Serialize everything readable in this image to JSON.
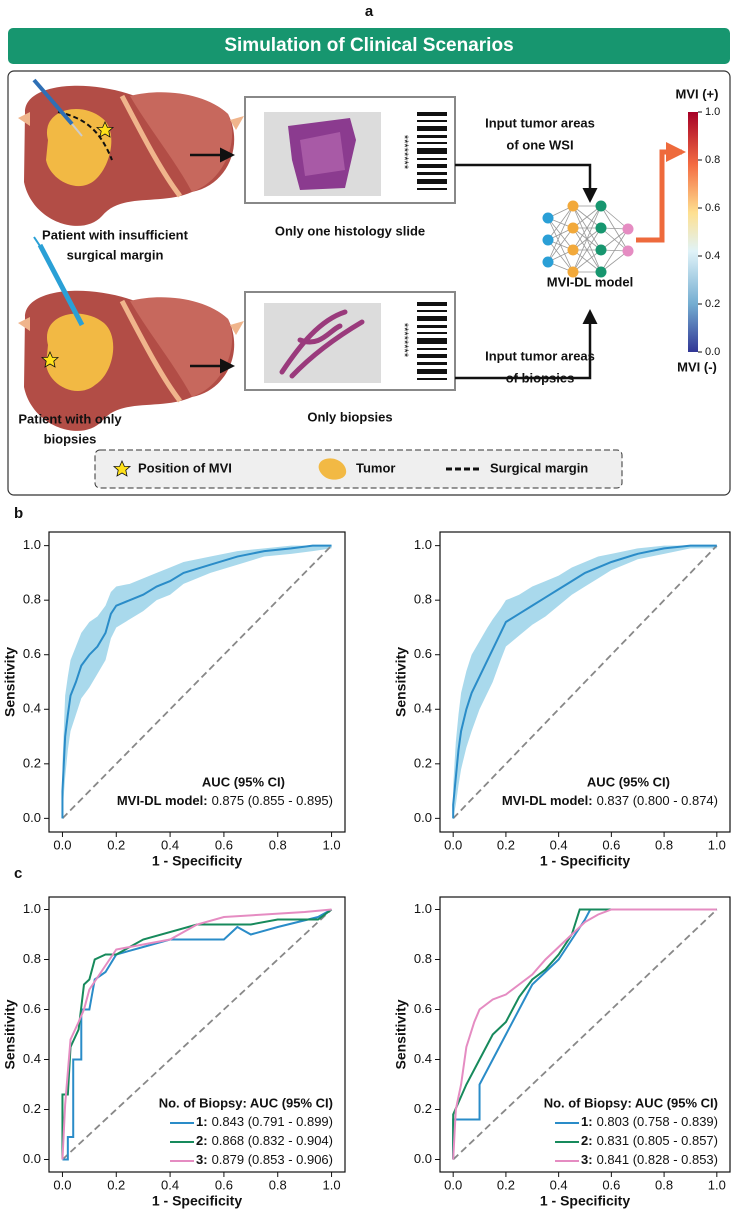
{
  "panel_a": {
    "label": "a",
    "banner": "Simulation of Clinical Scenarios",
    "scenario_1": {
      "patient": [
        "Patient with insufficient",
        "surgical margin"
      ],
      "specimen": "Only one histology slide",
      "input": [
        "Input tumor areas",
        "of one WSI"
      ]
    },
    "scenario_2": {
      "patient": [
        "Patient with only",
        "biopsies"
      ],
      "specimen": "Only biopsies",
      "input": [
        "Input tumor areas",
        "of biopsies"
      ]
    },
    "slide_code": "********",
    "model": "MVI-DL model",
    "colorbar": {
      "top_label": "MVI (+)",
      "bottom_label": "MVI (-)",
      "lim": [
        0,
        1
      ],
      "ticks": [
        {
          "value": 0,
          "label": "0.0"
        },
        0.2,
        0.4,
        0.6,
        0.8,
        {
          "value": 1,
          "label": "1.0"
        }
      ]
    },
    "legend": [
      "Position of MVI",
      "Tumor",
      "Surgical margin"
    ]
  },
  "panel_b": {
    "label": "b"
  },
  "panel_c": {
    "label": "c"
  },
  "chart_data": [
    {
      "type": "line",
      "xlabel": "1 - Specificity",
      "ylabel": "Sensitivity",
      "diagonal": true,
      "xlim": [
        -0.05,
        1.05
      ],
      "ylim": [
        -0.05,
        1.05
      ],
      "xticks": [
        {
          "value": 0,
          "label": "0.0"
        },
        0.2,
        0.4,
        0.6,
        0.8,
        {
          "value": 1,
          "label": "1.0"
        }
      ],
      "yticks": [
        {
          "value": 0,
          "label": "0.0"
        },
        0.2,
        0.4,
        0.6,
        0.8,
        {
          "value": 1,
          "label": "1.0"
        }
      ],
      "legend_title": "AUC (95% CI)",
      "band_color": "#a9d9ec",
      "series": [
        {
          "name": "MVI-DL model:",
          "auc_label": "0.875 (0.855 - 0.895)",
          "color": "#2a8cc8",
          "x": [
            0,
            0,
            0.01,
            0.02,
            0.03,
            0.05,
            0.07,
            0.1,
            0.13,
            0.16,
            0.18,
            0.2,
            0.25,
            0.3,
            0.35,
            0.4,
            0.45,
            0.55,
            0.65,
            0.75,
            0.85,
            0.93,
            1
          ],
          "values": [
            0,
            0.1,
            0.3,
            0.38,
            0.45,
            0.5,
            0.56,
            0.6,
            0.63,
            0.68,
            0.75,
            0.78,
            0.8,
            0.82,
            0.85,
            0.87,
            0.9,
            0.93,
            0.96,
            0.98,
            0.99,
            1,
            1
          ],
          "band_lower": [
            0,
            0.02,
            0.15,
            0.25,
            0.32,
            0.38,
            0.44,
            0.48,
            0.53,
            0.58,
            0.66,
            0.7,
            0.73,
            0.76,
            0.8,
            0.82,
            0.86,
            0.9,
            0.93,
            0.96,
            0.97,
            0.98,
            0.99
          ],
          "band_upper": [
            0,
            0.2,
            0.45,
            0.52,
            0.58,
            0.63,
            0.68,
            0.72,
            0.74,
            0.78,
            0.83,
            0.85,
            0.86,
            0.88,
            0.9,
            0.92,
            0.94,
            0.96,
            0.98,
            0.99,
            1,
            1,
            1
          ]
        }
      ]
    },
    {
      "type": "line",
      "xlabel": "1 - Specificity",
      "ylabel": "Sensitivity",
      "diagonal": true,
      "xlim": [
        -0.05,
        1.05
      ],
      "ylim": [
        -0.05,
        1.05
      ],
      "xticks": [
        {
          "value": 0,
          "label": "0.0"
        },
        0.2,
        0.4,
        0.6,
        0.8,
        {
          "value": 1,
          "label": "1.0"
        }
      ],
      "yticks": [
        {
          "value": 0,
          "label": "0.0"
        },
        0.2,
        0.4,
        0.6,
        0.8,
        {
          "value": 1,
          "label": "1.0"
        }
      ],
      "legend_title": "AUC (95% CI)",
      "band_color": "#a9d9ec",
      "series": [
        {
          "name": "MVI-DL model:",
          "auc_label": "0.837 (0.800 - 0.874)",
          "color": "#2a8cc8",
          "x": [
            0,
            0,
            0.01,
            0.02,
            0.03,
            0.05,
            0.07,
            0.1,
            0.13,
            0.15,
            0.18,
            0.2,
            0.25,
            0.3,
            0.35,
            0.4,
            0.45,
            0.5,
            0.55,
            0.6,
            0.7,
            0.8,
            0.9,
            1
          ],
          "values": [
            0,
            0.05,
            0.15,
            0.25,
            0.32,
            0.4,
            0.46,
            0.52,
            0.58,
            0.62,
            0.68,
            0.72,
            0.75,
            0.78,
            0.81,
            0.84,
            0.87,
            0.9,
            0.92,
            0.94,
            0.97,
            0.99,
            1,
            1
          ],
          "band_lower": [
            0,
            0,
            0.05,
            0.12,
            0.18,
            0.26,
            0.32,
            0.4,
            0.46,
            0.5,
            0.58,
            0.63,
            0.67,
            0.71,
            0.74,
            0.78,
            0.82,
            0.85,
            0.88,
            0.91,
            0.95,
            0.97,
            0.99,
            0.99
          ],
          "band_upper": [
            0,
            0.12,
            0.28,
            0.38,
            0.46,
            0.54,
            0.6,
            0.65,
            0.7,
            0.73,
            0.77,
            0.8,
            0.82,
            0.85,
            0.87,
            0.89,
            0.92,
            0.94,
            0.96,
            0.97,
            0.99,
            1,
            1,
            1
          ]
        }
      ]
    },
    {
      "type": "line",
      "xlabel": "1 - Specificity",
      "ylabel": "Sensitivity",
      "diagonal": true,
      "xlim": [
        -0.05,
        1.05
      ],
      "ylim": [
        -0.05,
        1.05
      ],
      "xticks": [
        {
          "value": 0,
          "label": "0.0"
        },
        0.2,
        0.4,
        0.6,
        0.8,
        {
          "value": 1,
          "label": "1.0"
        }
      ],
      "yticks": [
        {
          "value": 0,
          "label": "0.0"
        },
        0.2,
        0.4,
        0.6,
        0.8,
        {
          "value": 1,
          "label": "1.0"
        }
      ],
      "legend_title": "No. of Biopsy: AUC (95% CI)",
      "series": [
        {
          "name": "1:",
          "auc_label": "0.843 (0.791 - 0.899)",
          "color": "#2a8cc8",
          "x": [
            0,
            0.02,
            0.02,
            0.04,
            0.04,
            0.07,
            0.07,
            0.1,
            0.12,
            0.16,
            0.2,
            0.3,
            0.4,
            0.6,
            0.65,
            0.7,
            0.8,
            0.95,
            1
          ],
          "values": [
            0,
            0,
            0.09,
            0.09,
            0.4,
            0.4,
            0.6,
            0.6,
            0.72,
            0.75,
            0.82,
            0.85,
            0.88,
            0.88,
            0.93,
            0.9,
            0.93,
            0.97,
            1
          ]
        },
        {
          "name": "2:",
          "auc_label": "0.868 (0.832 - 0.904)",
          "color": "#178a5c",
          "x": [
            0,
            0,
            0.02,
            0.03,
            0.06,
            0.08,
            0.1,
            0.12,
            0.16,
            0.2,
            0.3,
            0.5,
            0.7,
            0.8,
            0.95,
            1
          ],
          "values": [
            0,
            0.26,
            0.26,
            0.45,
            0.52,
            0.7,
            0.72,
            0.8,
            0.82,
            0.82,
            0.88,
            0.94,
            0.94,
            0.96,
            0.96,
            1
          ]
        },
        {
          "name": "3:",
          "auc_label": "0.879 (0.853 - 0.906)",
          "color": "#e58cc2",
          "x": [
            0,
            0.01,
            0.03,
            0.06,
            0.08,
            0.1,
            0.15,
            0.2,
            0.3,
            0.4,
            0.5,
            0.6,
            0.75,
            0.9,
            1
          ],
          "values": [
            0,
            0.22,
            0.48,
            0.55,
            0.6,
            0.68,
            0.76,
            0.84,
            0.86,
            0.88,
            0.94,
            0.97,
            0.98,
            0.99,
            1
          ]
        }
      ]
    },
    {
      "type": "line",
      "xlabel": "1 - Specificity",
      "ylabel": "Sensitivity",
      "diagonal": true,
      "xlim": [
        -0.05,
        1.05
      ],
      "ylim": [
        -0.05,
        1.05
      ],
      "xticks": [
        {
          "value": 0,
          "label": "0.0"
        },
        0.2,
        0.4,
        0.6,
        0.8,
        {
          "value": 1,
          "label": "1.0"
        }
      ],
      "yticks": [
        {
          "value": 0,
          "label": "0.0"
        },
        0.2,
        0.4,
        0.6,
        0.8,
        {
          "value": 1,
          "label": "1.0"
        }
      ],
      "legend_title": "No. of Biopsy: AUC (95% CI)",
      "series": [
        {
          "name": "1:",
          "auc_label": "0.803 (0.758 - 0.839)",
          "color": "#2a8cc8",
          "x": [
            0,
            0,
            0.1,
            0.1,
            0.15,
            0.2,
            0.25,
            0.3,
            0.35,
            0.4,
            0.45,
            0.5,
            0.52,
            1
          ],
          "values": [
            0,
            0.16,
            0.16,
            0.3,
            0.4,
            0.5,
            0.6,
            0.7,
            0.75,
            0.8,
            0.88,
            0.96,
            1,
            1
          ]
        },
        {
          "name": "2:",
          "auc_label": "0.831 (0.805 - 0.857)",
          "color": "#178a5c",
          "x": [
            0,
            0,
            0.05,
            0.1,
            0.15,
            0.2,
            0.25,
            0.3,
            0.35,
            0.4,
            0.45,
            0.48,
            1
          ],
          "values": [
            0,
            0.18,
            0.3,
            0.4,
            0.5,
            0.55,
            0.65,
            0.72,
            0.76,
            0.82,
            0.9,
            1,
            1
          ]
        },
        {
          "name": "3:",
          "auc_label": "0.841 (0.828 - 0.853)",
          "color": "#e58cc2",
          "x": [
            0,
            0.01,
            0.03,
            0.05,
            0.08,
            0.1,
            0.15,
            0.2,
            0.25,
            0.3,
            0.35,
            0.4,
            0.45,
            0.5,
            0.55,
            0.6,
            1
          ],
          "values": [
            0,
            0.2,
            0.3,
            0.45,
            0.55,
            0.6,
            0.64,
            0.66,
            0.7,
            0.74,
            0.8,
            0.85,
            0.9,
            0.95,
            0.98,
            1,
            1
          ]
        }
      ]
    }
  ]
}
